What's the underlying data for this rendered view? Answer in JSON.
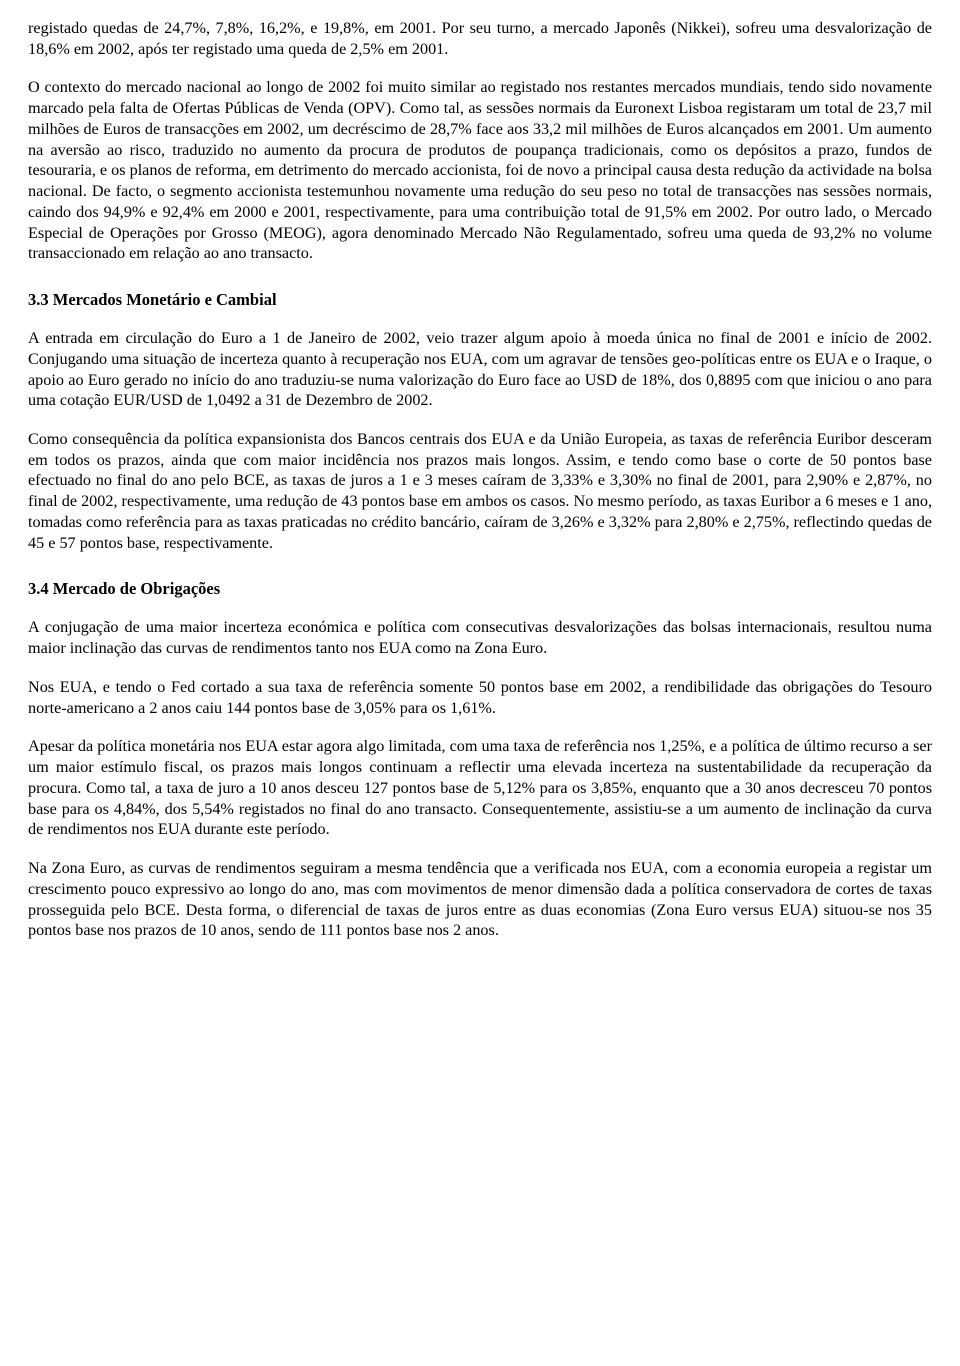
{
  "document": {
    "font_family": "Times New Roman",
    "text_color": "#000000",
    "background_color": "#ffffff",
    "base_fontsize": 16.2,
    "heading_fontsize": 16.5,
    "line_height": 1.28,
    "text_align": "justify"
  },
  "p1": "registado quedas de 24,7%, 7,8%, 16,2%, e 19,8%, em 2001. Por seu turno, a mercado Japonês (Nikkei), sofreu uma desvalorização de 18,6% em 2002, após ter registado uma queda de 2,5% em 2001.",
  "p2": "O contexto do mercado nacional ao longo de 2002 foi muito similar ao registado nos restantes mercados mundiais, tendo sido novamente marcado pela falta de Ofertas Públicas de Venda (OPV). Como tal, as sessões normais da Euronext Lisboa registaram um total de 23,7 mil milhões de Euros de transacções em 2002, um decréscimo de 28,7% face aos 33,2 mil milhões de Euros alcançados em 2001. Um aumento na aversão ao risco, traduzido no aumento da procura de produtos de poupança tradicionais, como os depósitos a prazo, fundos de tesouraria, e os planos de reforma, em detrimento do mercado accionista, foi de novo a principal causa desta redução da actividade na bolsa nacional. De facto, o segmento accionista testemunhou novamente uma redução do seu peso no total de transacções nas sessões normais, caindo dos 94,9% e 92,4% em 2000 e 2001, respectivamente, para uma contribuição total de 91,5% em 2002. Por outro lado, o Mercado Especial de Operações por Grosso (MEOG), agora denominado Mercado Não Regulamentado, sofreu uma queda de 93,2% no volume transaccionado em relação ao ano transacto.",
  "h33": "3.3  Mercados Monetário e Cambial",
  "p3": "A entrada em circulação do Euro a 1 de Janeiro de 2002, veio trazer algum apoio à moeda única no final de 2001 e início de 2002. Conjugando uma situação de incerteza quanto à recuperação nos EUA, com um agravar de tensões geo-políticas entre os EUA e o Iraque, o apoio ao Euro gerado no início do ano traduziu-se numa valorização do Euro face ao USD de 18%, dos 0,8895 com que iniciou o ano para uma cotação EUR/USD de 1,0492 a 31 de Dezembro de 2002.",
  "p4": "Como consequência da política expansionista dos Bancos centrais dos EUA e da União Europeia, as taxas de referência Euribor desceram em todos os prazos, ainda que com maior incidência nos prazos mais longos. Assim, e tendo como base o corte de 50 pontos base efectuado no final do ano pelo BCE, as taxas de juros a 1 e 3 meses caíram de 3,33% e 3,30% no final de 2001, para 2,90% e 2,87%, no final de 2002, respectivamente, uma redução de 43 pontos base em ambos os casos. No mesmo período, as taxas Euribor a 6 meses e 1 ano, tomadas como referência para as taxas praticadas no crédito bancário, caíram de 3,26% e 3,32% para 2,80% e 2,75%, reflectindo quedas de 45 e 57 pontos base, respectivamente.",
  "h34": "3.4  Mercado de Obrigações",
  "p5": "A conjugação de uma maior incerteza económica e política com consecutivas desvalorizações das bolsas internacionais, resultou numa maior inclinação das curvas de rendimentos tanto nos EUA como na Zona Euro.",
  "p6": "Nos EUA, e tendo o Fed cortado a sua taxa de referência somente 50 pontos base em 2002, a rendibilidade das obrigações do Tesouro norte-americano a 2 anos caiu 144 pontos base de 3,05% para os 1,61%.",
  "p7": "Apesar da política monetária nos EUA estar agora algo limitada, com uma taxa de referência nos 1,25%, e a política de último recurso a ser um maior estímulo fiscal, os prazos mais longos continuam a reflectir uma elevada incerteza na sustentabilidade da recuperação da procura. Como tal, a taxa de juro a 10 anos desceu 127 pontos base de 5,12% para os 3,85%, enquanto que a 30 anos decresceu 70 pontos base para os 4,84%, dos 5,54% registados no final do ano transacto. Consequentemente, assistiu-se a um aumento de inclinação da curva de rendimentos nos EUA durante este período.",
  "p8": "Na Zona Euro, as curvas de rendimentos seguiram a mesma tendência que a verificada nos EUA, com a economia europeia a registar um crescimento pouco expressivo ao longo do ano, mas com movimentos de menor dimensão dada a política conservadora de cortes de taxas prosseguida pelo BCE. Desta forma, o diferencial de taxas de juros entre as duas economias (Zona Euro versus EUA) situou-se nos 35 pontos base nos prazos de 10 anos, sendo de 111 pontos base nos 2 anos."
}
